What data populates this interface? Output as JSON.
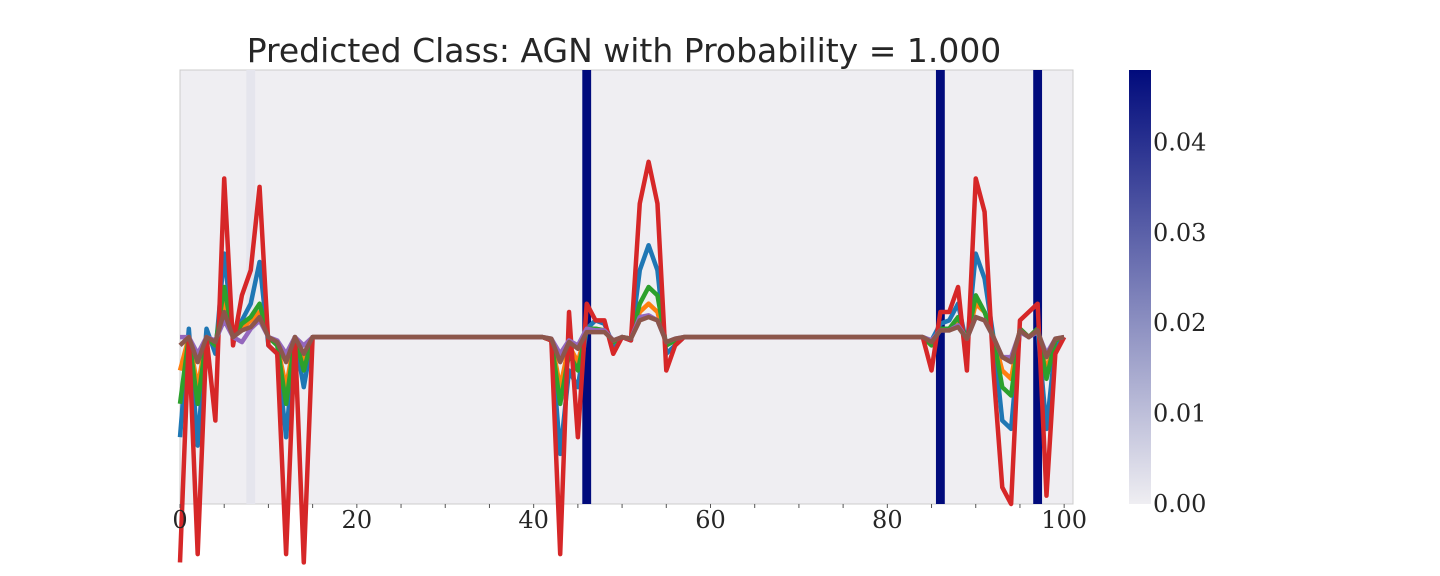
{
  "chart_data": {
    "type": "line",
    "title": "Predicted Class: AGN with Probability = 1.000",
    "xlabel": "",
    "ylabel": "",
    "xlim": [
      0,
      101
    ],
    "ylim": [
      -1.0,
      1.6
    ],
    "x_ticks": [
      "0",
      "20",
      "40",
      "60",
      "80",
      "100"
    ],
    "y_ticks": [],
    "grid": false,
    "legend": "none",
    "background_color": "#efeef2",
    "colorbar": {
      "label": "",
      "range": [
        0.0,
        0.048
      ],
      "ticks": [
        "0.00",
        "0.01",
        "0.02",
        "0.03",
        "0.04"
      ],
      "color_low": "#efeef2",
      "color_high": "#010b7c"
    },
    "heatmap": {
      "description": "attention weight per time step shown as vertical bands",
      "bands": [
        {
          "x": 8,
          "value": 0.002
        },
        {
          "x": 46,
          "value": 0.048
        },
        {
          "x": 86,
          "value": 0.048
        },
        {
          "x": 97,
          "value": 0.048
        }
      ]
    },
    "series": [
      {
        "color": "#1f77b4",
        "values": [
          -0.6,
          0.05,
          -0.65,
          0.05,
          -0.1,
          0.5,
          0.0,
          0.1,
          0.2,
          0.45,
          -0.05,
          -0.1,
          -0.6,
          0.0,
          -0.3,
          0.0,
          0,
          0,
          0,
          0,
          0,
          0,
          0,
          0,
          0,
          0,
          0,
          0,
          0,
          0,
          0,
          0,
          0,
          0,
          0,
          0,
          0,
          0,
          0,
          0,
          0,
          0,
          -0.02,
          -0.7,
          -0.2,
          -0.3,
          0.05,
          0.1,
          0.08,
          -0.05,
          0.0,
          -0.02,
          0.4,
          0.55,
          0.4,
          -0.1,
          -0.05,
          0.0,
          0,
          0,
          0,
          0,
          0,
          0,
          0,
          0,
          0,
          0,
          0,
          0,
          0,
          0,
          0,
          0,
          0,
          0,
          0,
          0,
          0,
          0,
          0,
          0,
          0,
          0,
          0,
          -0.02,
          0.08,
          0.1,
          0.2,
          -0.05,
          0.5,
          0.35,
          0.0,
          -0.5,
          -0.55,
          0.05,
          0.0,
          0.05,
          -0.55,
          -0.05,
          0.0
        ]
      },
      {
        "color": "#ff7f0e",
        "values": [
          -0.2,
          0.0,
          -0.3,
          0.0,
          -0.05,
          0.2,
          0.0,
          0.05,
          0.1,
          0.15,
          0.0,
          -0.05,
          -0.3,
          0.0,
          -0.15,
          0.0,
          0,
          0,
          0,
          0,
          0,
          0,
          0,
          0,
          0,
          0,
          0,
          0,
          0,
          0,
          0,
          0,
          0,
          0,
          0,
          0,
          0,
          0,
          0,
          0,
          0,
          0,
          -0.02,
          -0.3,
          -0.05,
          -0.15,
          0.05,
          0.05,
          0.04,
          -0.03,
          0.0,
          -0.01,
          0.15,
          0.2,
          0.15,
          -0.05,
          -0.02,
          0.0,
          0,
          0,
          0,
          0,
          0,
          0,
          0,
          0,
          0,
          0,
          0,
          0,
          0,
          0,
          0,
          0,
          0,
          0,
          0,
          0,
          0,
          0,
          0,
          0,
          0,
          0,
          0,
          -0.05,
          0.05,
          0.05,
          0.1,
          -0.02,
          0.2,
          0.15,
          0.0,
          -0.2,
          -0.25,
          0.05,
          0.0,
          0.05,
          -0.2,
          -0.02,
          0.0
        ]
      },
      {
        "color": "#2ca02c",
        "values": [
          -0.4,
          0.0,
          -0.4,
          0.0,
          -0.05,
          0.3,
          0.0,
          0.08,
          0.12,
          0.2,
          0.0,
          -0.05,
          -0.4,
          0.0,
          -0.2,
          0.0,
          0,
          0,
          0,
          0,
          0,
          0,
          0,
          0,
          0,
          0,
          0,
          0,
          0,
          0,
          0,
          0,
          0,
          0,
          0,
          0,
          0,
          0,
          0,
          0,
          0,
          0,
          -0.02,
          -0.4,
          -0.1,
          -0.2,
          0.05,
          0.05,
          0.04,
          -0.03,
          0.0,
          -0.01,
          0.2,
          0.3,
          0.25,
          -0.05,
          -0.02,
          0.0,
          0,
          0,
          0,
          0,
          0,
          0,
          0,
          0,
          0,
          0,
          0,
          0,
          0,
          0,
          0,
          0,
          0,
          0,
          0,
          0,
          0,
          0,
          0,
          0,
          0,
          0,
          0,
          -0.05,
          0.05,
          0.05,
          0.12,
          -0.02,
          0.25,
          0.15,
          0.0,
          -0.3,
          -0.35,
          0.05,
          0.0,
          0.05,
          -0.25,
          -0.02,
          0.0
        ]
      },
      {
        "color": "#d62728",
        "values": [
          -1.35,
          0.0,
          -1.3,
          0.0,
          -0.5,
          0.95,
          -0.05,
          0.25,
          0.4,
          0.9,
          -0.05,
          -0.1,
          -1.3,
          0.0,
          -1.35,
          0.0,
          0,
          0,
          0,
          0,
          0,
          0,
          0,
          0,
          0,
          0,
          0,
          0,
          0,
          0,
          0,
          0,
          0,
          0,
          0,
          0,
          0,
          0,
          0,
          0,
          0,
          0,
          -0.02,
          -1.3,
          0.15,
          -0.6,
          0.2,
          0.1,
          0.1,
          -0.1,
          0.0,
          -0.02,
          0.8,
          1.05,
          0.8,
          -0.2,
          -0.05,
          0.0,
          0,
          0,
          0,
          0,
          0,
          0,
          0,
          0,
          0,
          0,
          0,
          0,
          0,
          0,
          0,
          0,
          0,
          0,
          0,
          0,
          0,
          0,
          0,
          0,
          0,
          0,
          0,
          -0.2,
          0.15,
          0.15,
          0.3,
          -0.2,
          0.95,
          0.75,
          -0.2,
          -0.9,
          -1.0,
          0.1,
          0.15,
          0.2,
          -0.95,
          -0.1,
          0.0
        ]
      },
      {
        "color": "#9467bd",
        "values": [
          0.0,
          0.0,
          -0.1,
          0.0,
          -0.02,
          0.1,
          0.0,
          -0.03,
          0.05,
          0.1,
          0.0,
          -0.02,
          -0.1,
          0.0,
          -0.05,
          0.0,
          0,
          0,
          0,
          0,
          0,
          0,
          0,
          0,
          0,
          0,
          0,
          0,
          0,
          0,
          0,
          0,
          0,
          0,
          0,
          0,
          0,
          0,
          0,
          0,
          0,
          0,
          -0.01,
          -0.1,
          -0.02,
          -0.05,
          0.05,
          0.04,
          0.04,
          -0.02,
          0.0,
          -0.01,
          0.12,
          0.13,
          0.1,
          -0.03,
          -0.01,
          0.0,
          0,
          0,
          0,
          0,
          0,
          0,
          0,
          0,
          0,
          0,
          0,
          0,
          0,
          0,
          0,
          0,
          0,
          0,
          0,
          0,
          0,
          0,
          0,
          0,
          0,
          0,
          0,
          -0.02,
          0.04,
          0.04,
          0.07,
          -0.01,
          0.12,
          0.1,
          0.0,
          -0.12,
          -0.12,
          0.03,
          0.0,
          0.03,
          -0.1,
          -0.01,
          0.0
        ]
      },
      {
        "color": "#8c564b",
        "values": [
          -0.05,
          0.0,
          -0.15,
          0.0,
          -0.03,
          0.15,
          0.0,
          0.04,
          0.06,
          0.12,
          0.0,
          -0.03,
          -0.15,
          0.0,
          -0.1,
          0.0,
          0,
          0,
          0,
          0,
          0,
          0,
          0,
          0,
          0,
          0,
          0,
          0,
          0,
          0,
          0,
          0,
          0,
          0,
          0,
          0,
          0,
          0,
          0,
          0,
          0,
          0,
          -0.01,
          -0.15,
          -0.03,
          -0.07,
          0.03,
          0.03,
          0.03,
          -0.02,
          0.0,
          -0.01,
          0.1,
          0.12,
          0.1,
          -0.03,
          -0.01,
          0.0,
          0,
          0,
          0,
          0,
          0,
          0,
          0,
          0,
          0,
          0,
          0,
          0,
          0,
          0,
          0,
          0,
          0,
          0,
          0,
          0,
          0,
          0,
          0,
          0,
          0,
          0,
          0,
          -0.03,
          0.04,
          0.04,
          0.06,
          -0.01,
          0.12,
          0.1,
          0.0,
          -0.12,
          -0.15,
          0.04,
          0.0,
          0.04,
          -0.12,
          -0.01,
          0.0
        ]
      }
    ]
  }
}
